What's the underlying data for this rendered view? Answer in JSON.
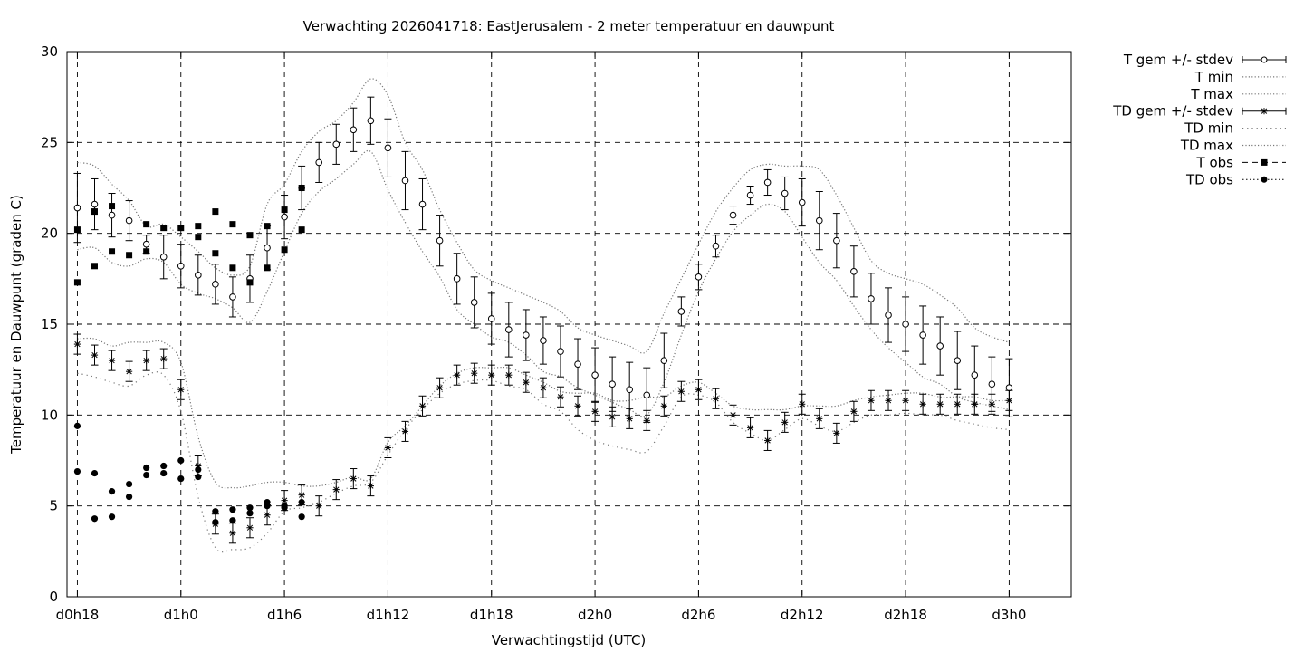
{
  "chart_data": {
    "type": "line",
    "title": "Verwachting 2026041718: EastJerusalem - 2 meter temperatuur en dauwpunt",
    "xlabel": "Verwachtingstijd (UTC)",
    "ylabel": "Temperatuur en Dauwpunt (graden C)",
    "xlim": [
      17.4,
      75.6
    ],
    "ylim": [
      0,
      30
    ],
    "grid": true,
    "legend_position": "outside-right",
    "x_ticks": [
      {
        "x": 18,
        "label": "d0h18"
      },
      {
        "x": 24,
        "label": "d1h0"
      },
      {
        "x": 30,
        "label": "d1h6"
      },
      {
        "x": 36,
        "label": "d1h12"
      },
      {
        "x": 42,
        "label": "d1h18"
      },
      {
        "x": 48,
        "label": "d2h0"
      },
      {
        "x": 54,
        "label": "d2h6"
      },
      {
        "x": 60,
        "label": "d2h12"
      },
      {
        "x": 66,
        "label": "d2h18"
      },
      {
        "x": 72,
        "label": "d3h0"
      }
    ],
    "y_ticks": [
      0,
      5,
      10,
      15,
      20,
      25,
      30
    ],
    "x": [
      18,
      19,
      20,
      21,
      22,
      23,
      24,
      25,
      26,
      27,
      28,
      29,
      30,
      31,
      32,
      33,
      34,
      35,
      36,
      37,
      38,
      39,
      40,
      41,
      42,
      43,
      44,
      45,
      46,
      47,
      48,
      49,
      50,
      51,
      52,
      53,
      54,
      55,
      56,
      57,
      58,
      59,
      60,
      61,
      62,
      63,
      64,
      65,
      66,
      67,
      68,
      69,
      70,
      71,
      72
    ],
    "series": [
      {
        "name": "T gem +/- stdev",
        "style": "errorbars-open-circle",
        "values": [
          21.4,
          21.6,
          21.0,
          20.7,
          19.4,
          18.7,
          18.2,
          17.7,
          17.2,
          16.5,
          17.5,
          19.2,
          20.9,
          22.5,
          23.9,
          24.9,
          25.7,
          26.2,
          24.7,
          22.9,
          21.6,
          19.6,
          17.5,
          16.2,
          15.3,
          14.7,
          14.4,
          14.1,
          13.5,
          12.8,
          12.2,
          11.7,
          11.4,
          11.1,
          13.0,
          15.7,
          17.6,
          19.3,
          21.0,
          22.1,
          22.8,
          22.2,
          21.7,
          20.7,
          19.6,
          17.9,
          16.4,
          15.5,
          15.0,
          14.4,
          13.8,
          13.0,
          12.2,
          11.7,
          11.5
        ],
        "stdev": [
          1.9,
          1.4,
          1.2,
          1.1,
          0.5,
          1.2,
          1.2,
          1.1,
          1.1,
          1.1,
          1.3,
          1.2,
          1.2,
          1.2,
          1.1,
          1.1,
          1.2,
          1.3,
          1.6,
          1.6,
          1.4,
          1.4,
          1.4,
          1.4,
          1.4,
          1.5,
          1.4,
          1.3,
          1.4,
          1.4,
          1.5,
          1.5,
          1.5,
          1.5,
          1.5,
          0.8,
          0.7,
          0.6,
          0.5,
          0.5,
          0.7,
          0.9,
          1.3,
          1.6,
          1.5,
          1.4,
          1.4,
          1.5,
          1.5,
          1.6,
          1.6,
          1.6,
          1.6,
          1.5,
          1.6
        ]
      },
      {
        "name": "T min",
        "style": "dotted",
        "values": [
          19.1,
          19.2,
          18.4,
          18.2,
          18.6,
          18.4,
          17.2,
          16.7,
          16.4,
          15.9,
          15.1,
          16.8,
          19.0,
          21.1,
          22.3,
          23.0,
          23.8,
          24.5,
          22.4,
          20.6,
          19.0,
          17.6,
          15.8,
          15.0,
          14.3,
          14.0,
          13.3,
          12.4,
          12.1,
          11.5,
          11.1,
          10.7,
          10.3,
          10.0,
          11.8,
          14.4,
          16.8,
          18.6,
          20.1,
          21.0,
          21.6,
          21.2,
          19.8,
          18.4,
          17.4,
          16.0,
          14.7,
          13.7,
          12.9,
          12.1,
          11.7,
          11.0,
          10.7,
          10.5,
          10.3
        ]
      },
      {
        "name": "T max",
        "style": "dotted",
        "values": [
          23.9,
          23.7,
          22.7,
          21.8,
          20.4,
          20.5,
          19.8,
          19.0,
          18.1,
          17.7,
          18.2,
          21.6,
          22.7,
          24.5,
          25.6,
          26.2,
          27.2,
          28.5,
          27.6,
          25.0,
          23.5,
          21.3,
          19.5,
          18.0,
          17.4,
          17.0,
          16.6,
          16.2,
          15.7,
          14.8,
          14.4,
          14.1,
          13.8,
          13.5,
          15.6,
          17.5,
          19.4,
          21.2,
          22.5,
          23.5,
          23.8,
          23.7,
          23.7,
          23.5,
          22.1,
          20.3,
          18.5,
          17.8,
          17.5,
          17.2,
          16.6,
          15.9,
          14.8,
          14.3,
          14.0
        ]
      },
      {
        "name": "TD gem +/- stdev",
        "style": "errorbars-star",
        "values": [
          13.9,
          13.3,
          13.0,
          12.4,
          13.0,
          13.1,
          11.4,
          7.2,
          4.0,
          3.5,
          3.8,
          4.5,
          5.3,
          5.6,
          5.0,
          5.9,
          6.5,
          6.1,
          8.2,
          9.1,
          10.5,
          11.5,
          12.2,
          12.3,
          12.2,
          12.2,
          11.8,
          11.5,
          11.0,
          10.5,
          10.2,
          9.9,
          9.8,
          9.7,
          10.5,
          11.3,
          11.4,
          10.9,
          10.0,
          9.3,
          8.6,
          9.6,
          10.6,
          9.8,
          9.0,
          10.2,
          10.8,
          10.8,
          10.8,
          10.6,
          10.6,
          10.6,
          10.6,
          10.6,
          10.8
        ]
      },
      {
        "name": "TD min",
        "style": "dotted-sparse",
        "values": [
          12.3,
          12.1,
          11.8,
          11.6,
          12.2,
          12.2,
          10.2,
          5.5,
          2.7,
          2.6,
          2.7,
          3.5,
          4.7,
          4.9,
          5.2,
          5.7,
          6.1,
          6.3,
          7.8,
          9.2,
          10.3,
          11.2,
          11.7,
          11.9,
          11.9,
          11.6,
          11.4,
          10.6,
          10.2,
          9.2,
          8.6,
          8.3,
          8.1,
          8.0,
          9.4,
          11.0,
          11.1,
          10.7,
          9.6,
          9.0,
          8.6,
          9.2,
          9.8,
          9.4,
          9.1,
          9.6,
          10.0,
          10.0,
          10.1,
          10.0,
          10.0,
          9.7,
          9.5,
          9.3,
          9.2
        ]
      },
      {
        "name": "TD max",
        "style": "dotted",
        "values": [
          14.2,
          14.2,
          13.8,
          14.0,
          14.0,
          14.0,
          12.9,
          8.8,
          6.3,
          6.0,
          6.1,
          6.3,
          6.3,
          6.1,
          6.1,
          6.3,
          6.6,
          6.5,
          8.5,
          9.4,
          10.5,
          11.6,
          12.3,
          12.6,
          12.6,
          12.6,
          12.2,
          11.8,
          11.3,
          11.2,
          11.2,
          10.8,
          10.8,
          11.0,
          11.0,
          11.6,
          11.8,
          11.2,
          10.5,
          10.3,
          10.3,
          10.3,
          10.5,
          10.5,
          10.5,
          10.8,
          11.0,
          11.1,
          11.2,
          11.2,
          11.0,
          11.0,
          11.0,
          10.8,
          10.8
        ]
      },
      {
        "name": "T obs",
        "style": "filled-square",
        "points": [
          [
            18,
            20.2
          ],
          [
            18,
            17.3
          ],
          [
            19,
            21.2
          ],
          [
            19,
            18.2
          ],
          [
            20,
            21.5
          ],
          [
            20,
            19.0
          ],
          [
            21,
            18.8
          ],
          [
            22,
            20.5
          ],
          [
            22,
            19.0
          ],
          [
            23,
            20.3
          ],
          [
            24,
            20.3
          ],
          [
            25,
            20.4
          ],
          [
            25,
            19.8
          ],
          [
            26,
            21.2
          ],
          [
            26,
            18.9
          ],
          [
            27,
            20.5
          ],
          [
            27,
            18.1
          ],
          [
            28,
            19.9
          ],
          [
            28,
            17.3
          ],
          [
            29,
            20.4
          ],
          [
            29,
            18.1
          ],
          [
            30,
            21.3
          ],
          [
            30,
            19.1
          ],
          [
            31,
            22.5
          ],
          [
            31,
            20.2
          ]
        ]
      },
      {
        "name": "TD obs",
        "style": "filled-circle",
        "points": [
          [
            18,
            9.4
          ],
          [
            18,
            6.9
          ],
          [
            19,
            6.8
          ],
          [
            19,
            4.3
          ],
          [
            20,
            5.8
          ],
          [
            20,
            4.4
          ],
          [
            21,
            6.2
          ],
          [
            21,
            5.5
          ],
          [
            22,
            7.1
          ],
          [
            22,
            6.7
          ],
          [
            23,
            7.2
          ],
          [
            23,
            6.8
          ],
          [
            24,
            7.5
          ],
          [
            24,
            6.5
          ],
          [
            25,
            7.0
          ],
          [
            25,
            6.6
          ],
          [
            26,
            4.7
          ],
          [
            26,
            4.1
          ],
          [
            27,
            4.8
          ],
          [
            27,
            4.2
          ],
          [
            28,
            4.9
          ],
          [
            28,
            4.6
          ],
          [
            29,
            5.2
          ],
          [
            29,
            5.0
          ],
          [
            30,
            5.0
          ],
          [
            30,
            4.9
          ],
          [
            31,
            5.2
          ],
          [
            31,
            4.4
          ]
        ]
      }
    ]
  }
}
